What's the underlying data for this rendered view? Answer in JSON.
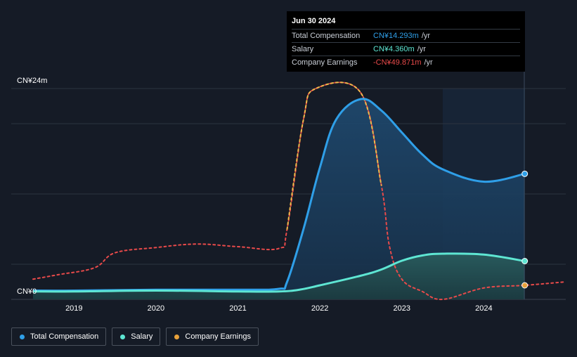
{
  "colors": {
    "total": "#2f9fe8",
    "salary": "#5ee6d3",
    "earnings": "#e84a4a",
    "earnings_dotted_high": "#f0b84a",
    "earnings_marker": "#e8a13a"
  },
  "tooltip": {
    "date": "Jun 30 2024",
    "rows": [
      {
        "name": "Total Compensation",
        "value": "CN¥14.293m",
        "unit": "/yr"
      },
      {
        "name": "Salary",
        "value": "CN¥4.360m",
        "unit": "/yr"
      },
      {
        "name": "Company Earnings",
        "value": "-CN¥49.871m",
        "unit": "/yr"
      }
    ]
  },
  "legend": [
    {
      "label": "Total Compensation",
      "color": "#2f9fe8"
    },
    {
      "label": "Salary",
      "color": "#5ee6d3"
    },
    {
      "label": "Company Earnings",
      "color": "#e8a13a"
    }
  ],
  "chart_data": {
    "type": "area",
    "y_labels": {
      "top": "CN¥24m",
      "bottom": "CN¥0"
    },
    "x_ticks": [
      "2019",
      "2020",
      "2021",
      "2022",
      "2023",
      "2024"
    ],
    "ylim": [
      0,
      24
    ],
    "xlim": [
      2018.5,
      2025.0
    ],
    "grid": true,
    "legend_position": "bottom-left",
    "series": [
      {
        "name": "Total Compensation",
        "points": [
          [
            2018.5,
            1.0
          ],
          [
            2019.0,
            1.0
          ],
          [
            2020.0,
            1.1
          ],
          [
            2021.0,
            1.1
          ],
          [
            2021.5,
            1.2
          ],
          [
            2021.6,
            2.0
          ],
          [
            2021.8,
            8.0
          ],
          [
            2022.0,
            15.0
          ],
          [
            2022.2,
            20.5
          ],
          [
            2022.5,
            22.8
          ],
          [
            2022.75,
            21.5
          ],
          [
            2023.0,
            19.0
          ],
          [
            2023.25,
            16.5
          ],
          [
            2023.5,
            14.8
          ],
          [
            2024.0,
            13.4
          ],
          [
            2024.5,
            14.293
          ]
        ]
      },
      {
        "name": "Salary",
        "points": [
          [
            2018.5,
            0.9
          ],
          [
            2019.0,
            0.9
          ],
          [
            2020.0,
            1.0
          ],
          [
            2021.0,
            0.9
          ],
          [
            2021.5,
            0.9
          ],
          [
            2021.75,
            1.1
          ],
          [
            2022.0,
            1.6
          ],
          [
            2022.5,
            2.7
          ],
          [
            2022.75,
            3.4
          ],
          [
            2023.0,
            4.4
          ],
          [
            2023.25,
            5.0
          ],
          [
            2023.5,
            5.2
          ],
          [
            2024.0,
            5.1
          ],
          [
            2024.5,
            4.36
          ]
        ]
      },
      {
        "name": "Company Earnings",
        "points": [
          [
            2018.5,
            2.3
          ],
          [
            2018.8,
            2.8
          ],
          [
            2019.25,
            3.6
          ],
          [
            2019.5,
            5.3
          ],
          [
            2020.0,
            5.9
          ],
          [
            2020.5,
            6.3
          ],
          [
            2021.0,
            6.0
          ],
          [
            2021.5,
            5.8
          ],
          [
            2021.6,
            8.0
          ],
          [
            2021.8,
            20.5
          ],
          [
            2021.95,
            24.0
          ],
          [
            2022.5,
            23.5
          ],
          [
            2022.75,
            13.0
          ],
          [
            2022.85,
            6.0
          ],
          [
            2023.0,
            2.3
          ],
          [
            2023.25,
            0.9
          ],
          [
            2023.5,
            0.0
          ],
          [
            2024.0,
            1.3
          ],
          [
            2024.5,
            1.6
          ],
          [
            2025.0,
            2.0
          ]
        ]
      }
    ]
  }
}
